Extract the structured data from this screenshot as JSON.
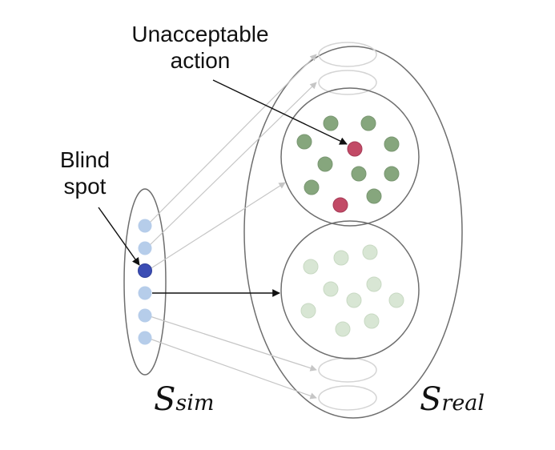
{
  "labels": {
    "unacceptable": [
      "Unacceptable",
      "action"
    ],
    "blind": [
      "Blind",
      "spot"
    ]
  },
  "sets": {
    "sim": {
      "base": "S",
      "sub": "sim"
    },
    "real": {
      "base": "S",
      "sub": "real"
    }
  },
  "colors": {
    "sim_state": "#b6cdea",
    "blind_spot": "#3b4db4",
    "acceptable_strong": "#86a67d",
    "unacceptable": "#c24a66",
    "acceptable_faded": "#d8e6d4",
    "outline": "#6e6e6e",
    "faint_outline": "#d4d4d4",
    "arrow_faint": "#c6c6c6",
    "arrow_dark": "#111111"
  }
}
